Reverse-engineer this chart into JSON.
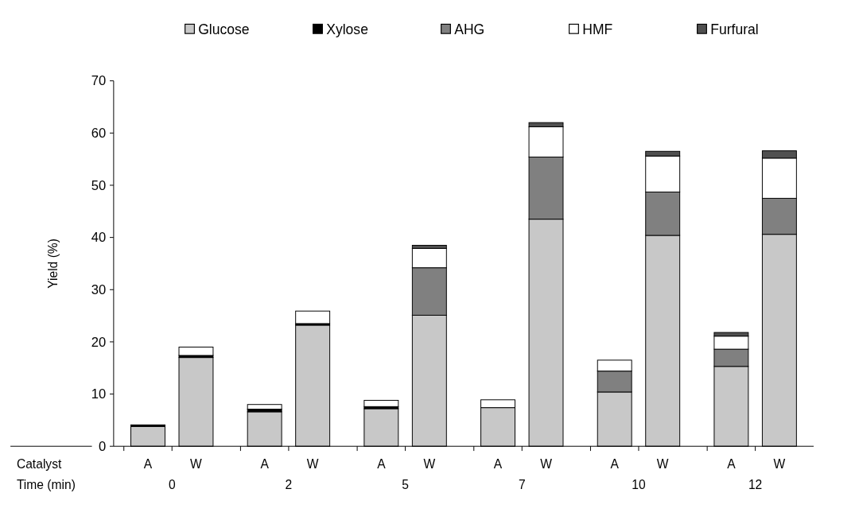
{
  "chart_data": {
    "type": "bar",
    "stacked": true,
    "ylabel": "Yield (%)",
    "categories": [
      "A",
      "W",
      "A",
      "W",
      "A",
      "W",
      "A",
      "W",
      "A",
      "W",
      "A",
      "W"
    ],
    "series": [
      {
        "name": "Glucose",
        "color": "#c8c8c8",
        "values": [
          3.8,
          17.0,
          6.6,
          23.2,
          7.2,
          25.1,
          7.4,
          43.5,
          10.4,
          40.4,
          15.3,
          40.6
        ]
      },
      {
        "name": "Xylose",
        "color": "#000000",
        "values": [
          0.3,
          0.4,
          0.5,
          0.3,
          0.4,
          0,
          0,
          0,
          0,
          0,
          0,
          0
        ]
      },
      {
        "name": "AHG",
        "color": "#808080",
        "values": [
          0,
          0,
          0,
          0,
          0,
          9.1,
          0,
          11.9,
          4.0,
          8.3,
          3.3,
          6.9
        ]
      },
      {
        "name": "HMF",
        "color": "#ffffff",
        "values": [
          0,
          1.6,
          0.9,
          2.4,
          1.2,
          3.7,
          1.5,
          5.8,
          2.1,
          6.9,
          2.5,
          7.7
        ]
      },
      {
        "name": "Furfural",
        "color": "#505050",
        "values": [
          0,
          0,
          0,
          0,
          0,
          0.6,
          0,
          0.8,
          0,
          0.9,
          0.7,
          1.4
        ]
      }
    ],
    "ylim": [
      0,
      70
    ],
    "yticks": [
      0,
      10,
      20,
      30,
      40,
      50,
      60,
      70
    ],
    "legend": "top",
    "annotations": [
      "Catalyst",
      "Time (min)",
      "0",
      "2",
      "5",
      "7",
      "10",
      "12"
    ]
  }
}
